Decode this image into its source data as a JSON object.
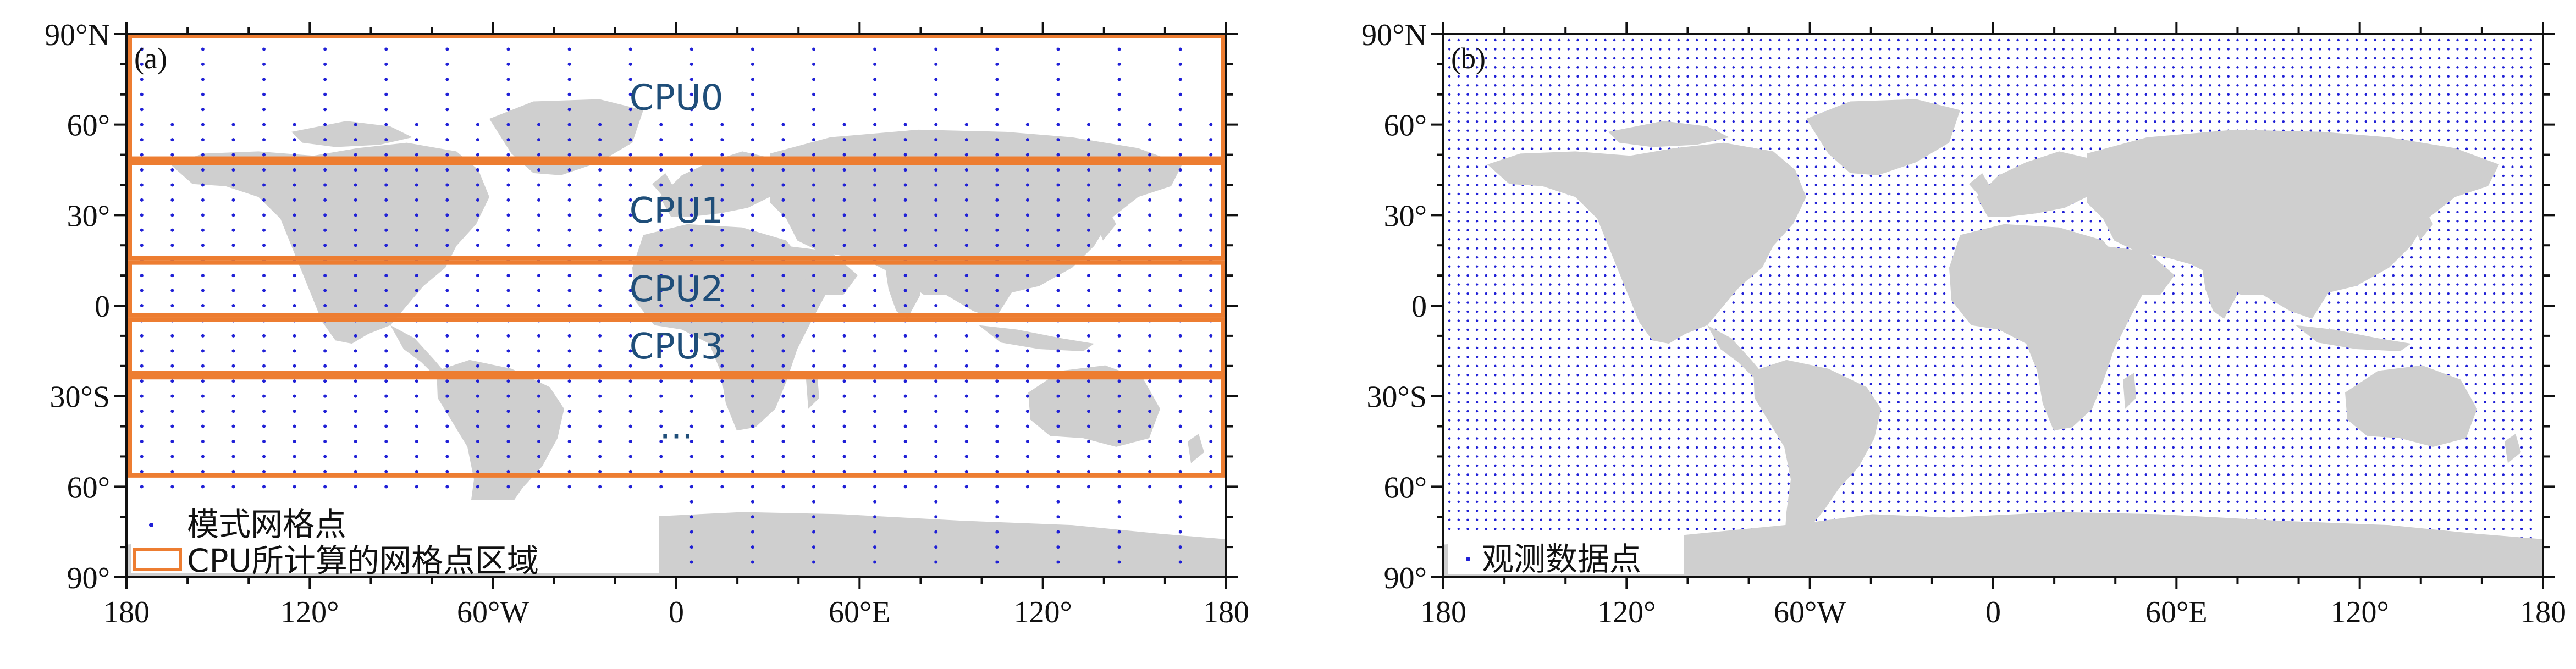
{
  "panels": [
    {
      "letter": "(a)",
      "x_ticks": [
        "180",
        "120°",
        "60°W",
        "0",
        "60°E",
        "120°",
        "180"
      ],
      "y_ticks": [
        "90°N",
        "60°",
        "30°",
        "0",
        "30°S",
        "60°",
        "90°"
      ],
      "regions": [
        {
          "label": "CPU0",
          "lat_top": 90,
          "lat_bottom": 48
        },
        {
          "label": "CPU1",
          "lat_top": 48,
          "lat_bottom": 15
        },
        {
          "label": "CPU2",
          "lat_top": 15,
          "lat_bottom": -4
        },
        {
          "label": "CPU3",
          "lat_top": -4,
          "lat_bottom": -23
        },
        {
          "label": "...",
          "lat_top": -23,
          "lat_bottom": -57
        }
      ],
      "legend": {
        "dot_label": "模式网格点",
        "box_label": "CPU所计算的网格点区域"
      }
    },
    {
      "letter": "(b)",
      "x_ticks": [
        "180",
        "120°",
        "60°W",
        "0",
        "60°E",
        "120°",
        "180"
      ],
      "y_ticks": [
        "90°N",
        "60°",
        "30°",
        "0",
        "30°S",
        "60°",
        "90°"
      ],
      "legend": {
        "dot_label": "观测数据点"
      }
    }
  ],
  "colors": {
    "land": "#cfcfcf",
    "grid_dots": "#1f1fd6",
    "region_box": "#ed7d31",
    "cpu_text": "#1f4e79"
  }
}
